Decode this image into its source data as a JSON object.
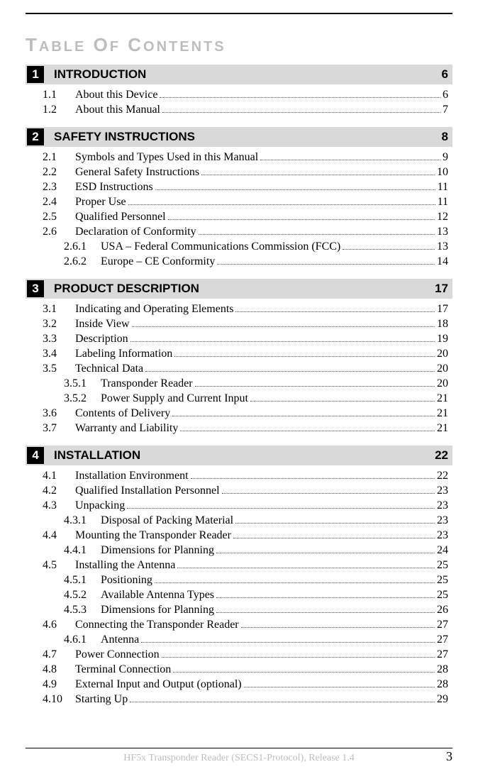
{
  "title_html": "T<span class='small'>ABLE</span> O<span class='small'>F</span> C<span class='small'>ONTENTS</span>",
  "sections": [
    {
      "num": "1",
      "label": "INTRODUCTION",
      "page": "6",
      "entries": [
        {
          "level": 1,
          "num": "1.1",
          "label": "About this Device",
          "page": "6"
        },
        {
          "level": 1,
          "num": "1.2",
          "label": "About this Manual",
          "page": "7"
        }
      ]
    },
    {
      "num": "2",
      "label": "SAFETY INSTRUCTIONS",
      "page": "8",
      "entries": [
        {
          "level": 1,
          "num": "2.1",
          "label": "Symbols and Types Used in this Manual",
          "page": "9"
        },
        {
          "level": 1,
          "num": "2.2",
          "label": "General Safety Instructions",
          "page": "10"
        },
        {
          "level": 1,
          "num": "2.3",
          "label": "ESD Instructions",
          "page": "11"
        },
        {
          "level": 1,
          "num": "2.4",
          "label": "Proper Use",
          "page": "11"
        },
        {
          "level": 1,
          "num": "2.5",
          "label": "Qualified Personnel",
          "page": "12"
        },
        {
          "level": 1,
          "num": "2.6",
          "label": "Declaration of Conformity",
          "page": "13"
        },
        {
          "level": 2,
          "num": "2.6.1",
          "label": "USA – Federal Communications Commission (FCC)",
          "page": "13"
        },
        {
          "level": 2,
          "num": "2.6.2",
          "label": "Europe – CE Conformity",
          "page": "14"
        }
      ]
    },
    {
      "num": "3",
      "label": "PRODUCT DESCRIPTION",
      "page": "17",
      "entries": [
        {
          "level": 1,
          "num": "3.1",
          "label": "Indicating and Operating Elements",
          "page": "17"
        },
        {
          "level": 1,
          "num": "3.2",
          "label": "Inside View",
          "page": "18"
        },
        {
          "level": 1,
          "num": "3.3",
          "label": "Description",
          "page": "19"
        },
        {
          "level": 1,
          "num": "3.4",
          "label": "Labeling Information",
          "page": "20"
        },
        {
          "level": 1,
          "num": "3.5",
          "label": "Technical Data",
          "page": "20"
        },
        {
          "level": 2,
          "num": "3.5.1",
          "label": "Transponder Reader",
          "page": "20"
        },
        {
          "level": 2,
          "num": "3.5.2",
          "label": "Power Supply and Current Input",
          "page": "21"
        },
        {
          "level": 1,
          "num": "3.6",
          "label": "Contents of Delivery",
          "page": "21"
        },
        {
          "level": 1,
          "num": "3.7",
          "label": "Warranty and Liability",
          "page": "21"
        }
      ]
    },
    {
      "num": "4",
      "label": "INSTALLATION",
      "page": "22",
      "entries": [
        {
          "level": 1,
          "num": "4.1",
          "label": "Installation Environment",
          "page": "22"
        },
        {
          "level": 1,
          "num": "4.2",
          "label": "Qualified Installation Personnel",
          "page": "23"
        },
        {
          "level": 1,
          "num": "4.3",
          "label": "Unpacking",
          "page": "23"
        },
        {
          "level": 2,
          "num": "4.3.1",
          "label": "Disposal of Packing Material",
          "page": "23"
        },
        {
          "level": 1,
          "num": "4.4",
          "label": "Mounting the Transponder Reader",
          "page": "23"
        },
        {
          "level": 2,
          "num": "4.4.1",
          "label": "Dimensions for Planning",
          "page": "24"
        },
        {
          "level": 1,
          "num": "4.5",
          "label": "Installing the Antenna",
          "page": "25"
        },
        {
          "level": 2,
          "num": "4.5.1",
          "label": "Positioning",
          "page": "25"
        },
        {
          "level": 2,
          "num": "4.5.2",
          "label": "Available Antenna Types",
          "page": "25"
        },
        {
          "level": 2,
          "num": "4.5.3",
          "label": "Dimensions for Planning",
          "page": "26"
        },
        {
          "level": 1,
          "num": "4.6",
          "label": "Connecting the Transponder Reader",
          "page": "27"
        },
        {
          "level": 2,
          "num": "4.6.1",
          "label": "Antenna",
          "page": "27"
        },
        {
          "level": 1,
          "num": "4.7",
          "label": "Power Connection",
          "page": "27"
        },
        {
          "level": 1,
          "num": "4.8",
          "label": "Terminal Connection",
          "page": "28"
        },
        {
          "level": 1,
          "num": "4.9",
          "label": "External Input and Output (optional)",
          "page": "28"
        },
        {
          "level": 1,
          "num": "4.10",
          "label": "Starting Up",
          "page": "29"
        }
      ]
    }
  ],
  "footer": {
    "text": "HF5x Transponder Reader (SECS1-Protocol), Release 1.4",
    "page": "3"
  }
}
